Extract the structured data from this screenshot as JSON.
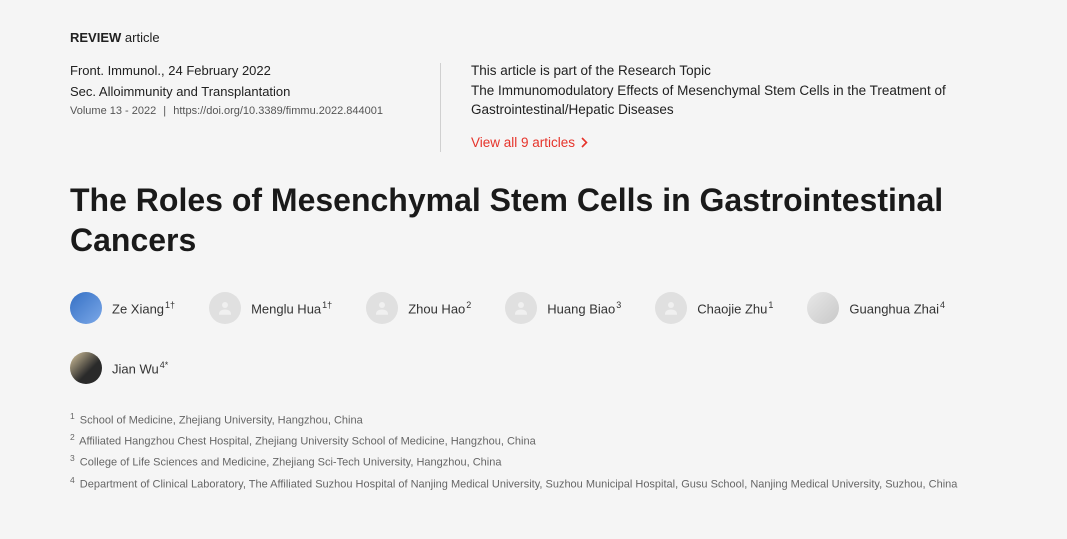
{
  "articleType": {
    "bold": "REVIEW",
    "light": "article"
  },
  "meta": {
    "journalDate": "Front. Immunol., 24 February 2022",
    "section": "Sec. Alloimmunity and Transplantation",
    "volume": "Volume 13 - 2022",
    "doi": "https://doi.org/10.3389/fimmu.2022.844001"
  },
  "researchTopic": {
    "heading": "This article is part of the Research Topic",
    "title": "The Immunomodulatory Effects of Mesenchymal Stem Cells in the Treatment of Gastrointestinal/Hepatic Diseases",
    "viewAll": "View all 9 articles"
  },
  "title": "The Roles of Mesenchymal Stem Cells in Gastrointestinal Cancers",
  "authors": [
    {
      "name": "Ze Xiang",
      "sup": "1†",
      "avatar": "photo1"
    },
    {
      "name": "Menglu Hua",
      "sup": "1†",
      "avatar": "placeholder"
    },
    {
      "name": "Zhou Hao",
      "sup": "2",
      "avatar": "placeholder"
    },
    {
      "name": "Huang Biao",
      "sup": "3",
      "avatar": "placeholder"
    },
    {
      "name": "Chaojie Zhu",
      "sup": "1",
      "avatar": "placeholder"
    },
    {
      "name": "Guanghua Zhai",
      "sup": "4",
      "avatar": "photo2"
    },
    {
      "name": "Jian Wu",
      "sup": "4*",
      "avatar": "photo3"
    }
  ],
  "affiliations": [
    {
      "num": "1",
      "text": "School of Medicine, Zhejiang University, Hangzhou, China"
    },
    {
      "num": "2",
      "text": "Affiliated Hangzhou Chest Hospital, Zhejiang University School of Medicine, Hangzhou, China"
    },
    {
      "num": "3",
      "text": "College of Life Sciences and Medicine, Zhejiang Sci-Tech University, Hangzhou, China"
    },
    {
      "num": "4",
      "text": "Department of Clinical Laboratory, The Affiliated Suzhou Hospital of Nanjing Medical University, Suzhou Municipal Hospital, Gusu School, Nanjing Medical University, Suzhou, China"
    }
  ],
  "colors": {
    "accent": "#e6332a"
  }
}
